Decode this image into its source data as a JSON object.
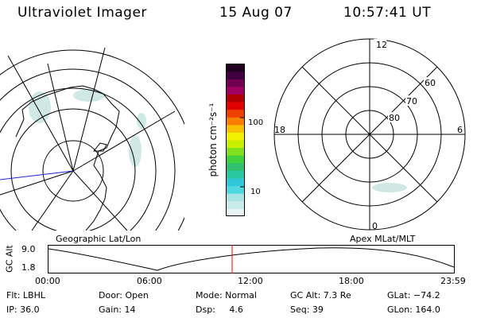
{
  "header": {
    "title": "Ultraviolet Imager",
    "date": "15 Aug 07",
    "time": "10:57:41 UT"
  },
  "left_map": {
    "caption": "Geographic Lat/Lon"
  },
  "right_map": {
    "caption": "Apex MLat/MLT",
    "mlt_labels": {
      "top": "12",
      "right": "6",
      "bottom": "0",
      "left": "18"
    },
    "lat_labels": [
      "60",
      "70",
      "80"
    ]
  },
  "colorbar": {
    "unit_label": "photon cm⁻²s⁻¹",
    "ticks": [
      "100",
      "10"
    ],
    "colors": [
      "#e8f4f4",
      "#c8ecec",
      "#a8e4e4",
      "#50d8e0",
      "#30c8d8",
      "#28c8a0",
      "#30c070",
      "#40d040",
      "#80e020",
      "#c8f000",
      "#f0f000",
      "#f8c000",
      "#f88000",
      "#f04000",
      "#e00000",
      "#b00000",
      "#a00060",
      "#700050",
      "#400040",
      "#200020"
    ]
  },
  "timeline": {
    "y_label": "GC Alt",
    "y_ticks": [
      "9.0",
      "1.8"
    ],
    "x_ticks": [
      "00:00",
      "06:00",
      "12:00",
      "18:00",
      "23:59"
    ],
    "marker_color": "#ff0000"
  },
  "footer": {
    "filter": "Flt: LBHL",
    "door": "Door: Open",
    "mode": "Mode: Normal",
    "gc_alt": "GC Alt: 7.3 Re",
    "glat": "GLat: −74.2",
    "ip": "IP: 36.0",
    "gain": "Gain: 14",
    "dsp": "Dsp:     4.6",
    "seq": "Seq: 39",
    "glon": "GLon: 164.0"
  }
}
